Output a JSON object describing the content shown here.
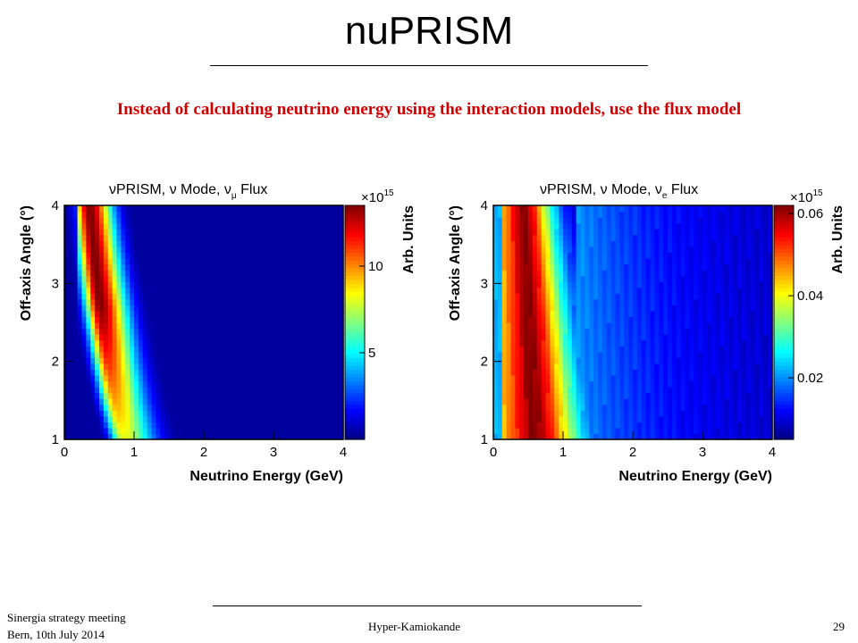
{
  "slide": {
    "title": "nuPRISM",
    "subtitle": "Instead of calculating neutrino energy using the interaction models, use the flux model",
    "footer_left_line1": "Sinergia strategy meeting",
    "footer_left_line2": "Bern, 10th July 2014",
    "footer_center": "Hyper-Kamiokande",
    "page_number": "29"
  },
  "chart_data": [
    {
      "type": "heatmap",
      "title": "νPRISM, ν Mode, νμ Flux",
      "title_main": "νPRISM, ν Mode, ν",
      "title_sub": "μ",
      "title_tail": " Flux",
      "xlabel": "Neutrino Energy (GeV)",
      "ylabel": "Off-axis Angle (°)",
      "xlim": [
        0,
        4
      ],
      "ylim": [
        1,
        4
      ],
      "x_ticks": [
        "0",
        "1",
        "2",
        "3",
        "4"
      ],
      "y_ticks": [
        "1",
        "2",
        "3",
        "4"
      ],
      "colorbar_label": "Arb. Units",
      "colorbar_multiplier": "×10",
      "colorbar_exponent": "15",
      "colorbar_range": [
        0,
        13.5
      ],
      "colorbar_ticks": [
        "5",
        "10"
      ],
      "colorbar_tick_values": [
        5,
        10
      ],
      "peak_energy_by_angle": [
        {
          "angle": 1.0,
          "energy_gev": 0.85
        },
        {
          "angle": 1.5,
          "energy_gev": 0.72
        },
        {
          "angle": 2.0,
          "energy_gev": 0.62
        },
        {
          "angle": 2.5,
          "energy_gev": 0.54
        },
        {
          "angle": 3.0,
          "energy_gev": 0.47
        },
        {
          "angle": 3.5,
          "energy_gev": 0.41
        },
        {
          "angle": 4.0,
          "energy_gev": 0.36
        }
      ]
    },
    {
      "type": "heatmap",
      "title": "νPRISM, ν Mode, νe Flux",
      "title_main": "νPRISM, ν Mode, ν",
      "title_sub": "e",
      "title_tail": " Flux",
      "xlabel": "Neutrino Energy (GeV)",
      "ylabel": "Off-axis Angle (°)",
      "xlim": [
        0,
        4
      ],
      "ylim": [
        1,
        4
      ],
      "x_ticks": [
        "0",
        "1",
        "2",
        "3",
        "4"
      ],
      "y_ticks": [
        "1",
        "2",
        "3",
        "4"
      ],
      "colorbar_label": "Arb. Units",
      "colorbar_multiplier": "×10",
      "colorbar_exponent": "15",
      "colorbar_range": [
        0.005,
        0.062
      ],
      "colorbar_ticks": [
        "0.02",
        "0.04",
        "0.06"
      ],
      "colorbar_tick_values": [
        0.02,
        0.04,
        0.06
      ],
      "peak_energy_by_angle": [
        {
          "angle": 1.0,
          "energy_gev": 0.55
        },
        {
          "angle": 2.0,
          "energy_gev": 0.5
        },
        {
          "angle": 3.0,
          "energy_gev": 0.45
        },
        {
          "angle": 4.0,
          "energy_gev": 0.4
        }
      ]
    }
  ]
}
